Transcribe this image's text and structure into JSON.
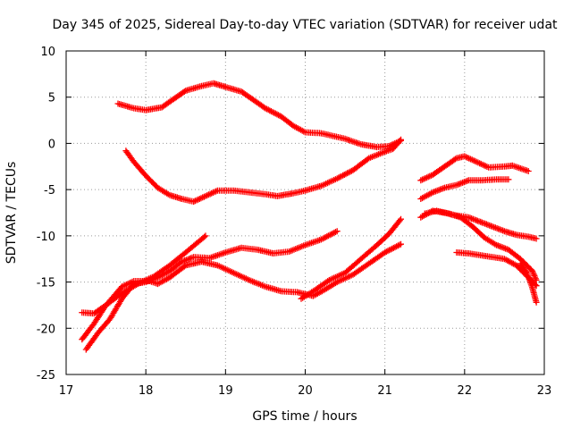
{
  "chart_data": {
    "type": "scatter",
    "title": "Day 345 of 2025, Sidereal Day-to-day VTEC variation (SDTVAR) for receiver udat",
    "xlabel": "GPS time / hours",
    "ylabel": "SDTVAR / TECUs",
    "xlim": [
      17,
      23
    ],
    "ylim": [
      -25,
      10
    ],
    "xticks": [
      17,
      18,
      19,
      20,
      21,
      22,
      23
    ],
    "yticks": [
      -25,
      -20,
      -15,
      -10,
      -5,
      0,
      5,
      10
    ],
    "grid": true,
    "marker": "plus",
    "series_color": "#ff0000",
    "series": [
      {
        "name": "s1",
        "points": [
          [
            17.65,
            4.3
          ],
          [
            17.85,
            3.8
          ],
          [
            18.0,
            3.6
          ],
          [
            18.2,
            3.9
          ],
          [
            18.35,
            4.8
          ],
          [
            18.5,
            5.7
          ],
          [
            18.7,
            6.2
          ],
          [
            18.85,
            6.5
          ],
          [
            19.0,
            6.1
          ],
          [
            19.2,
            5.6
          ],
          [
            19.35,
            4.7
          ],
          [
            19.5,
            3.8
          ],
          [
            19.7,
            2.9
          ],
          [
            19.85,
            1.9
          ],
          [
            20.0,
            1.2
          ],
          [
            20.2,
            1.1
          ],
          [
            20.35,
            0.8
          ],
          [
            20.5,
            0.5
          ],
          [
            20.7,
            -0.1
          ],
          [
            20.9,
            -0.4
          ],
          [
            21.05,
            -0.3
          ],
          [
            21.2,
            0.3
          ]
        ]
      },
      {
        "name": "s2",
        "points": [
          [
            17.75,
            -0.8
          ],
          [
            17.85,
            -2.0
          ],
          [
            18.0,
            -3.5
          ],
          [
            18.15,
            -4.8
          ],
          [
            18.3,
            -5.6
          ],
          [
            18.45,
            -6.0
          ],
          [
            18.6,
            -6.3
          ],
          [
            18.75,
            -5.7
          ],
          [
            18.9,
            -5.1
          ],
          [
            19.1,
            -5.1
          ],
          [
            19.3,
            -5.3
          ],
          [
            19.5,
            -5.5
          ],
          [
            19.65,
            -5.7
          ],
          [
            19.85,
            -5.4
          ],
          [
            20.0,
            -5.1
          ],
          [
            20.2,
            -4.6
          ],
          [
            20.4,
            -3.8
          ],
          [
            20.6,
            -2.9
          ],
          [
            20.8,
            -1.6
          ],
          [
            21.0,
            -0.9
          ],
          [
            21.1,
            -0.6
          ],
          [
            21.2,
            0.4
          ]
        ]
      },
      {
        "name": "s3",
        "points": [
          [
            17.2,
            -21.2
          ],
          [
            17.35,
            -19.5
          ],
          [
            17.5,
            -17.5
          ],
          [
            17.7,
            -16.2
          ],
          [
            17.9,
            -15.2
          ],
          [
            18.1,
            -14.4
          ],
          [
            18.3,
            -13.2
          ],
          [
            18.5,
            -11.8
          ],
          [
            18.75,
            -10.0
          ]
        ]
      },
      {
        "name": "s4",
        "points": [
          [
            17.2,
            -18.3
          ],
          [
            17.35,
            -18.4
          ],
          [
            17.5,
            -17.5
          ],
          [
            17.7,
            -15.5
          ],
          [
            17.85,
            -14.9
          ],
          [
            18.05,
            -14.9
          ],
          [
            18.15,
            -15.2
          ],
          [
            18.3,
            -14.5
          ],
          [
            18.5,
            -13.2
          ],
          [
            18.7,
            -12.8
          ],
          [
            18.9,
            -13.2
          ],
          [
            19.1,
            -14.0
          ],
          [
            19.3,
            -14.8
          ],
          [
            19.5,
            -15.5
          ],
          [
            19.7,
            -16.0
          ],
          [
            19.9,
            -16.1
          ],
          [
            20.1,
            -16.5
          ],
          [
            20.25,
            -15.8
          ],
          [
            20.4,
            -15.0
          ],
          [
            20.6,
            -14.2
          ],
          [
            20.8,
            -13.0
          ],
          [
            21.0,
            -11.8
          ],
          [
            21.2,
            -10.9
          ]
        ]
      },
      {
        "name": "s5",
        "points": [
          [
            17.25,
            -22.3
          ],
          [
            17.4,
            -20.5
          ],
          [
            17.55,
            -19.0
          ],
          [
            17.7,
            -16.8
          ],
          [
            17.85,
            -15.2
          ],
          [
            18.0,
            -15.0
          ],
          [
            18.15,
            -14.5
          ],
          [
            18.3,
            -13.8
          ],
          [
            18.45,
            -12.8
          ],
          [
            18.6,
            -12.3
          ],
          [
            18.8,
            -12.4
          ],
          [
            19.0,
            -11.8
          ],
          [
            19.2,
            -11.3
          ],
          [
            19.4,
            -11.5
          ],
          [
            19.6,
            -11.9
          ],
          [
            19.8,
            -11.7
          ],
          [
            20.0,
            -11.0
          ],
          [
            20.2,
            -10.4
          ],
          [
            20.4,
            -9.5
          ]
        ]
      },
      {
        "name": "s6",
        "points": [
          [
            19.95,
            -16.8
          ],
          [
            20.1,
            -16.0
          ],
          [
            20.3,
            -14.8
          ],
          [
            20.5,
            -14.0
          ],
          [
            20.7,
            -12.5
          ],
          [
            20.9,
            -11.0
          ],
          [
            21.05,
            -9.8
          ],
          [
            21.2,
            -8.2
          ]
        ]
      },
      {
        "name": "s7",
        "points": [
          [
            21.45,
            -4.0
          ],
          [
            21.6,
            -3.4
          ],
          [
            21.75,
            -2.5
          ],
          [
            21.9,
            -1.6
          ],
          [
            22.0,
            -1.4
          ],
          [
            22.15,
            -2.0
          ],
          [
            22.3,
            -2.6
          ],
          [
            22.5,
            -2.5
          ],
          [
            22.6,
            -2.4
          ],
          [
            22.8,
            -3.0
          ]
        ]
      },
      {
        "name": "s8",
        "points": [
          [
            21.45,
            -6.0
          ],
          [
            21.6,
            -5.3
          ],
          [
            21.75,
            -4.8
          ],
          [
            21.9,
            -4.5
          ],
          [
            22.05,
            -4.0
          ],
          [
            22.2,
            -4.0
          ],
          [
            22.4,
            -3.9
          ],
          [
            22.55,
            -3.9
          ]
        ]
      },
      {
        "name": "s9",
        "points": [
          [
            21.45,
            -8.0
          ],
          [
            21.6,
            -7.3
          ],
          [
            21.75,
            -7.5
          ],
          [
            21.9,
            -7.8
          ],
          [
            22.05,
            -8.0
          ],
          [
            22.2,
            -8.5
          ],
          [
            22.35,
            -9.0
          ],
          [
            22.5,
            -9.5
          ],
          [
            22.65,
            -9.9
          ],
          [
            22.8,
            -10.1
          ],
          [
            22.9,
            -10.3
          ]
        ]
      },
      {
        "name": "s10",
        "points": [
          [
            21.5,
            -7.6
          ],
          [
            21.65,
            -7.3
          ],
          [
            21.8,
            -7.6
          ],
          [
            21.95,
            -8.0
          ],
          [
            22.1,
            -9.0
          ],
          [
            22.25,
            -10.2
          ],
          [
            22.4,
            -11.0
          ],
          [
            22.55,
            -11.5
          ],
          [
            22.7,
            -12.5
          ],
          [
            22.85,
            -13.8
          ],
          [
            22.9,
            -14.8
          ]
        ]
      },
      {
        "name": "s11",
        "points": [
          [
            21.9,
            -11.8
          ],
          [
            22.05,
            -11.9
          ],
          [
            22.2,
            -12.1
          ],
          [
            22.35,
            -12.3
          ],
          [
            22.5,
            -12.5
          ],
          [
            22.65,
            -13.2
          ],
          [
            22.8,
            -14.5
          ],
          [
            22.9,
            -15.4
          ]
        ]
      },
      {
        "name": "s12",
        "points": [
          [
            22.7,
            -13.0
          ],
          [
            22.78,
            -14.0
          ],
          [
            22.85,
            -15.6
          ],
          [
            22.9,
            -17.2
          ]
        ]
      }
    ]
  }
}
